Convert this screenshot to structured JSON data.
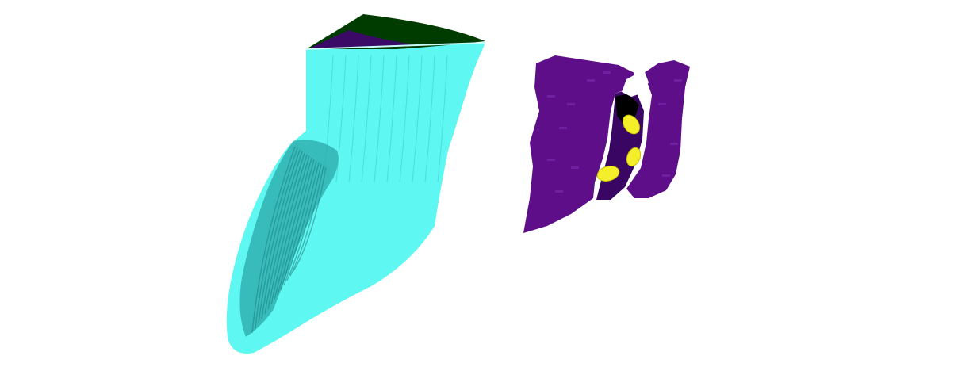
{
  "scene": {
    "background": "#ffffff",
    "objects": [
      {
        "name": "large-cyan-segmentation",
        "body_color": "#5ff7f2",
        "shadow_color": "#2aa8a8",
        "ridge_color": "#1f7f82",
        "cap_color": "#003b00",
        "cap_edge_color": "#3a0a66"
      },
      {
        "name": "purple-segmentation",
        "body_color": "#5f0e8a",
        "dark_color": "#3a0663",
        "highlight_color": "#6d20a0",
        "gap_color": "#000000",
        "blob_color": "#f4ef2a",
        "blob_count": 3
      }
    ]
  }
}
